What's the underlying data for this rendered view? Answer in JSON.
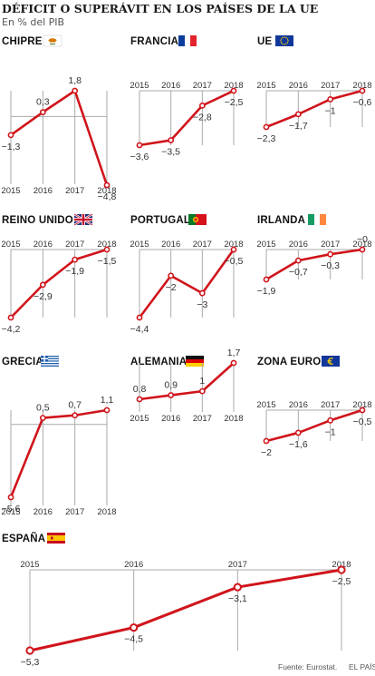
{
  "title": "DÉFICIT O SUPERÁVIT EN LOS PAÍSES DE LA UE",
  "subtitle": "En % del PIB",
  "source": "Fuente: Eurostat.",
  "publisher": "EL PAÍS",
  "colors": {
    "line": "#d0141b",
    "axis": "#aaaaaa",
    "text": "#333333"
  },
  "chart_data": {
    "type": "line",
    "years": [
      "2015",
      "2016",
      "2017",
      "2018"
    ],
    "panels": [
      {
        "name": "CHIPRE",
        "flag": "cyprus-flag",
        "values": [
          -1.3,
          0.3,
          1.8,
          -4.8
        ],
        "labels": [
          "−1,3",
          "0,3",
          "1,8",
          "−4,8"
        ]
      },
      {
        "name": "FRANCIA",
        "flag": "france-flag",
        "values": [
          -3.6,
          -3.5,
          -2.8,
          -2.5
        ],
        "labels": [
          "−3,6",
          "−3,5",
          "−2,8",
          "−2,5"
        ]
      },
      {
        "name": "UE",
        "flag": "eu-flag",
        "values": [
          -2.3,
          -1.7,
          -1.0,
          -0.6
        ],
        "labels": [
          "−2,3",
          "−1,7",
          "−1",
          "−0,6"
        ]
      },
      {
        "name": "REINO UNIDO",
        "flag": "uk-flag",
        "values": [
          -4.2,
          -2.9,
          -1.9,
          -1.5
        ],
        "labels": [
          "−4,2",
          "−2,9",
          "−1,9",
          "−1,5"
        ]
      },
      {
        "name": "PORTUGAL",
        "flag": "portugal-flag",
        "values": [
          -4.4,
          -2.0,
          -3.0,
          -0.5
        ],
        "labels": [
          "−4,4",
          "−2",
          "−3",
          "−0,5"
        ]
      },
      {
        "name": "IRLANDA",
        "flag": "ireland-flag",
        "values": [
          -1.9,
          -0.7,
          -0.3,
          0.0
        ],
        "labels": [
          "−1,9",
          "−0,7",
          "−0,3",
          "−0"
        ]
      },
      {
        "name": "GRECIA",
        "flag": "greece-flag",
        "values": [
          -5.6,
          0.5,
          0.7,
          1.1
        ],
        "labels": [
          "−5,6",
          "0,5",
          "0,7",
          "1,1"
        ]
      },
      {
        "name": "ALEMANIA",
        "flag": "germany-flag",
        "values": [
          0.8,
          0.9,
          1.0,
          1.7
        ],
        "labels": [
          "0,8",
          "0,9",
          "1",
          "1,7"
        ]
      },
      {
        "name": "ZONA EURO",
        "flag": "euro-flag",
        "values": [
          -2.0,
          -1.6,
          -1.0,
          -0.5
        ],
        "labels": [
          "−2",
          "−1,6",
          "−1",
          "−0,5"
        ]
      },
      {
        "name": "ESPAÑA",
        "flag": "spain-flag",
        "values": [
          -5.3,
          -4.5,
          -3.1,
          -2.5
        ],
        "labels": [
          "−5,3",
          "−4,5",
          "−3,1",
          "−2,5"
        ]
      }
    ]
  }
}
